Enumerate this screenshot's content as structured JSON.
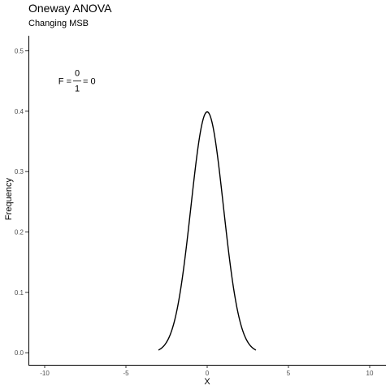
{
  "chart_data": {
    "type": "line",
    "title": "Oneway ANOVA",
    "subtitle": "Changing MSB",
    "xlabel": "X",
    "ylabel": "Frequency",
    "xlim": [
      -11,
      11
    ],
    "ylim": [
      -0.02,
      0.525
    ],
    "x_ticks": [
      -10,
      -5,
      0,
      5,
      10
    ],
    "x_tick_labels": [
      "-10",
      "-5",
      "0",
      "5",
      "10"
    ],
    "y_ticks": [
      0.0,
      0.1,
      0.2,
      0.3,
      0.4,
      0.5
    ],
    "y_tick_labels": [
      "0.0",
      "0.1",
      "0.2",
      "0.3",
      "0.4",
      "0.5"
    ],
    "grid": false,
    "legend": "none",
    "series": [
      {
        "curve": "normal-density",
        "mean": 0,
        "sd": 1,
        "x_range": [
          -3,
          3
        ],
        "color": "#000000"
      }
    ],
    "annotation": {
      "lhs": "F =",
      "numerator": "0",
      "denominator": "1",
      "rhs": "= 0",
      "x": -8,
      "y": 0.45
    }
  }
}
